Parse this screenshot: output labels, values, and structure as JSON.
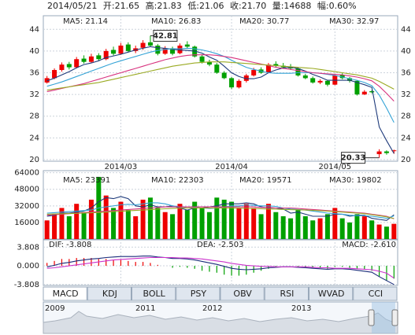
{
  "header": [
    "2014/05/21",
    "开:21.65",
    "高:21.83",
    "低:21.06",
    "收:21.70",
    "量:14688",
    "幅:0.60%"
  ],
  "chart_data": [
    {
      "type": "candlestick",
      "grid": true,
      "up_color": "#ee0000",
      "down_color": "#00a000",
      "categories": [
        null,
        null,
        null,
        null,
        null,
        null,
        null,
        null,
        null,
        null,
        "2014/03",
        null,
        null,
        null,
        null,
        null,
        null,
        null,
        null,
        null,
        null,
        null,
        null,
        null,
        null,
        "2014/04",
        null,
        null,
        null,
        null,
        null,
        null,
        null,
        null,
        null,
        null,
        null,
        null,
        null,
        "2014/05",
        null,
        null,
        null,
        null,
        null,
        null,
        null,
        null
      ],
      "ylim": [
        19.7,
        46.5
      ],
      "yticks": [
        20,
        24,
        28,
        32,
        36,
        40,
        44
      ],
      "ohlc": [
        [
          34.2,
          35.4,
          34.0,
          35.0
        ],
        [
          35.0,
          36.8,
          34.8,
          36.5
        ],
        [
          36.5,
          37.9,
          36.2,
          37.5
        ],
        [
          37.6,
          38.0,
          36.6,
          37.0
        ],
        [
          37.0,
          38.9,
          36.8,
          38.5
        ],
        [
          38.6,
          39.2,
          37.7,
          38.0
        ],
        [
          38.0,
          39.5,
          37.8,
          39.0
        ],
        [
          39.2,
          39.6,
          38.2,
          38.5
        ],
        [
          38.5,
          40.4,
          38.3,
          40.0
        ],
        [
          40.2,
          40.8,
          39.2,
          39.5
        ],
        [
          39.5,
          41.5,
          39.3,
          41.0
        ],
        [
          41.2,
          41.6,
          39.8,
          40.0
        ],
        [
          40.0,
          41.0,
          39.6,
          40.5
        ],
        [
          40.6,
          42.0,
          40.2,
          41.5
        ],
        [
          41.6,
          42.81,
          40.8,
          41.0
        ],
        [
          41.0,
          41.3,
          39.2,
          39.5
        ],
        [
          39.5,
          40.9,
          39.3,
          40.5
        ],
        [
          40.5,
          40.8,
          39.2,
          39.5
        ],
        [
          39.6,
          41.4,
          39.4,
          41.0
        ],
        [
          41.2,
          41.8,
          40.4,
          40.8
        ],
        [
          40.8,
          41.0,
          38.8,
          39.0
        ],
        [
          39.0,
          39.4,
          37.7,
          38.0
        ],
        [
          38.0,
          38.4,
          37.2,
          37.5
        ],
        [
          37.5,
          37.8,
          35.8,
          36.0
        ],
        [
          36.0,
          36.3,
          34.8,
          35.0
        ],
        [
          35.0,
          35.2,
          33.0,
          33.3
        ],
        [
          33.3,
          34.8,
          33.1,
          34.5
        ],
        [
          34.5,
          35.8,
          34.2,
          35.5
        ],
        [
          35.5,
          36.9,
          35.3,
          36.5
        ],
        [
          36.6,
          37.0,
          35.8,
          36.0
        ],
        [
          36.0,
          37.8,
          35.9,
          37.5
        ],
        [
          37.6,
          38.1,
          37.0,
          37.3
        ],
        [
          37.3,
          37.8,
          36.7,
          37.0
        ],
        [
          37.0,
          37.6,
          36.5,
          36.8
        ],
        [
          36.8,
          37.0,
          35.3,
          35.5
        ],
        [
          35.5,
          35.8,
          34.8,
          35.0
        ],
        [
          35.0,
          35.3,
          34.0,
          34.2
        ],
        [
          34.2,
          34.8,
          33.9,
          34.5
        ],
        [
          34.5,
          34.7,
          33.5,
          33.8
        ],
        [
          33.8,
          35.8,
          33.7,
          35.5
        ],
        [
          35.6,
          35.9,
          34.8,
          35.0
        ],
        [
          35.0,
          35.2,
          34.2,
          34.5
        ],
        [
          34.5,
          34.6,
          31.8,
          32.0
        ],
        [
          32.0,
          32.8,
          31.9,
          32.5
        ],
        [
          32.6,
          32.8,
          32.2,
          32.4
        ],
        [
          21.0,
          21.9,
          20.33,
          21.5
        ],
        [
          21.5,
          21.7,
          20.9,
          21.2
        ],
        [
          21.65,
          21.83,
          21.06,
          21.7
        ]
      ],
      "series": [
        {
          "name": "MA5: 21.14",
          "color": "#1e3a7a",
          "values": [
            34.5,
            35.0,
            35.6,
            36.2,
            36.9,
            37.5,
            37.8,
            38.2,
            38.8,
            39.1,
            39.4,
            39.8,
            40.2,
            40.5,
            40.8,
            40.6,
            40.5,
            40.3,
            40.2,
            40.1,
            40.0,
            39.6,
            38.9,
            38.3,
            37.2,
            36.0,
            35.3,
            34.9,
            34.9,
            35.2,
            36.0,
            36.5,
            36.9,
            37.0,
            36.8,
            36.3,
            35.7,
            35.2,
            34.6,
            34.6,
            34.6,
            34.6,
            34.2,
            33.8,
            33.3,
            26,
            23.5,
            21.14
          ]
        },
        {
          "name": "MA10: 26.83",
          "color": "#33a3d6",
          "values": [
            33.5,
            33.9,
            34.3,
            34.8,
            35.3,
            35.8,
            36.3,
            36.8,
            37.3,
            37.8,
            38.2,
            38.6,
            39.0,
            39.4,
            39.8,
            40.1,
            40.3,
            40.4,
            40.4,
            40.5,
            40.4,
            40.2,
            39.9,
            39.5,
            39.0,
            38.3,
            37.6,
            37.0,
            36.6,
            36.3,
            36.0,
            35.9,
            35.9,
            35.9,
            36.0,
            36.0,
            36.0,
            35.9,
            35.7,
            35.5,
            35.2,
            34.9,
            34.6,
            34.2,
            33.6,
            31.9,
            29.5,
            26.83
          ]
        },
        {
          "name": "MA20: 30.77",
          "color": "#d8337f",
          "values": [
            32.5,
            32.8,
            33.1,
            33.4,
            33.7,
            34.0,
            34.4,
            34.8,
            35.2,
            35.6,
            36.0,
            36.4,
            36.8,
            37.2,
            37.6,
            38.0,
            38.4,
            38.7,
            39.0,
            39.2,
            39.3,
            39.3,
            39.3,
            39.2,
            39.0,
            38.8,
            38.5,
            38.2,
            37.9,
            37.6,
            37.3,
            37.0,
            36.8,
            36.6,
            36.4,
            36.2,
            36.0,
            35.9,
            35.8,
            35.7,
            35.6,
            35.4,
            35.2,
            34.9,
            34.5,
            33.5,
            32.2,
            30.77
          ]
        },
        {
          "name": "MA30: 32.97",
          "color": "#9aaa22",
          "values": [
            32.8,
            33.0,
            33.2,
            33.4,
            33.6,
            33.8,
            34.0,
            34.2,
            34.5,
            34.8,
            35.1,
            35.4,
            35.7,
            36.0,
            36.3,
            36.6,
            36.9,
            37.2,
            37.4,
            37.6,
            37.8,
            37.9,
            38.0,
            38.0,
            38.0,
            37.9,
            37.8,
            37.7,
            37.6,
            37.5,
            37.4,
            37.3,
            37.2,
            37.1,
            37.0,
            36.9,
            36.8,
            36.6,
            36.4,
            36.2,
            36.0,
            35.8,
            35.6,
            35.3,
            35.0,
            34.4,
            33.7,
            32.97
          ]
        }
      ],
      "annotations": [
        {
          "value": 42.81,
          "index": 14
        },
        {
          "value": 20.33,
          "index": 45
        }
      ]
    },
    {
      "type": "volume",
      "grid": true,
      "up_color": "#ee0000",
      "down_color": "#00a000",
      "ylim": [
        0,
        66000
      ],
      "yticks": [
        16000,
        32000,
        48000,
        64000
      ],
      "values": [
        18000,
        24000,
        30000,
        22000,
        34000,
        26000,
        38000,
        60000,
        42000,
        30000,
        36000,
        28000,
        22000,
        38000,
        40000,
        30000,
        26000,
        24000,
        34000,
        28000,
        36000,
        30000,
        26000,
        40000,
        38000,
        36000,
        30000,
        34000,
        30000,
        24000,
        34000,
        26000,
        22000,
        20000,
        28000,
        22000,
        18000,
        20000,
        24000,
        30000,
        20000,
        16000,
        24000,
        22000,
        18000,
        14000,
        12000,
        14688
      ],
      "series": [
        {
          "name": "MA5: 23391",
          "color": "#1e3a7a",
          "values": [
            22000,
            23000,
            25000,
            25000,
            26000,
            27000,
            30000,
            36000,
            40000,
            39000,
            41000,
            39000,
            32000,
            31000,
            33000,
            31000,
            31000,
            32000,
            30000,
            28000,
            30000,
            30000,
            31000,
            32000,
            34000,
            34000,
            34000,
            35000,
            34000,
            31000,
            30000,
            30000,
            29000,
            25000,
            26000,
            24000,
            22000,
            22000,
            22000,
            24000,
            24000,
            22000,
            23000,
            23000,
            20000,
            19000,
            18000,
            23391
          ]
        },
        {
          "name": "MA10: 22303",
          "color": "#33a3d6",
          "values": [
            25000,
            25500,
            26000,
            26500,
            27000,
            27500,
            28000,
            30000,
            31000,
            32000,
            33000,
            33500,
            33000,
            34000,
            35000,
            35000,
            34000,
            32000,
            31000,
            30000,
            30500,
            30000,
            29500,
            30000,
            31000,
            32000,
            32000,
            33000,
            32500,
            32000,
            32000,
            31500,
            30000,
            29000,
            28500,
            28000,
            27000,
            26000,
            25000,
            24500,
            24000,
            23000,
            22500,
            22500,
            22000,
            21000,
            20000,
            22303
          ]
        },
        {
          "name": "MA20: 19571",
          "color": "#d8337f",
          "values": [
            23000,
            23500,
            24000,
            24500,
            25000,
            25500,
            26000,
            26500,
            27000,
            27500,
            28000,
            28500,
            29000,
            29500,
            30000,
            30500,
            31000,
            31000,
            31000,
            31000,
            31000,
            31000,
            31000,
            31000,
            31000,
            31000,
            31000,
            31000,
            31000,
            30500,
            30500,
            30000,
            30000,
            30000,
            29500,
            29000,
            28500,
            28000,
            27500,
            27000,
            26500,
            26000,
            25500,
            25000,
            24000,
            23000,
            22000,
            19571
          ]
        },
        {
          "name": "MA30: 19802",
          "color": "#9aaa22",
          "values": [
            24000,
            24200,
            24400,
            24600,
            24800,
            25000,
            25300,
            25600,
            26000,
            26400,
            26800,
            27200,
            27600,
            28000,
            28400,
            28800,
            29200,
            29500,
            29800,
            30000,
            30000,
            30000,
            30000,
            30000,
            30000,
            30000,
            29800,
            29600,
            29400,
            29200,
            29000,
            28800,
            28600,
            28400,
            28200,
            28000,
            27700,
            27400,
            27000,
            26500,
            26000,
            25500,
            25000,
            24500,
            23500,
            22500,
            21500,
            19802
          ]
        }
      ]
    },
    {
      "type": "macd",
      "grid": true,
      "up_color": "#ee0000",
      "down_color": "#00a000",
      "ylim": [
        -4.0,
        5.3
      ],
      "yticks": [
        3.808,
        {
          "value": 0,
          "label": "0.000"
        },
        -3.808
      ],
      "values": [
        0.6,
        1.0,
        1.4,
        1.4,
        1.6,
        1.6,
        1.6,
        1.4,
        1.4,
        1.2,
        1.2,
        1.0,
        0.8,
        0.8,
        0.6,
        0.2,
        0.0,
        -0.4,
        -0.2,
        -0.4,
        -0.6,
        -1.0,
        -1.2,
        -1.4,
        -1.8,
        -2.0,
        -2.0,
        -1.8,
        -1.4,
        -1.0,
        -0.6,
        -0.2,
        0.0,
        0.0,
        -0.2,
        -0.4,
        -0.4,
        -0.4,
        -0.6,
        -0.2,
        -0.2,
        -0.4,
        -0.6,
        -0.8,
        -1.0,
        -2.2,
        -3.0,
        -2.61
      ],
      "values_name": "MACD: -2.610",
      "series": [
        {
          "name": "DIF: -3.808",
          "color": "#1a2b7a",
          "values": [
            -0.2,
            0.1,
            0.5,
            0.7,
            1.0,
            1.2,
            1.4,
            1.5,
            1.7,
            1.8,
            1.9,
            1.9,
            1.9,
            2.0,
            2.0,
            1.8,
            1.7,
            1.5,
            1.5,
            1.4,
            1.2,
            0.9,
            0.6,
            0.3,
            -0.1,
            -0.5,
            -0.7,
            -0.8,
            -0.7,
            -0.6,
            -0.4,
            -0.3,
            -0.2,
            -0.2,
            -0.3,
            -0.4,
            -0.5,
            -0.6,
            -0.7,
            -0.6,
            -0.6,
            -0.7,
            -0.9,
            -1.1,
            -1.3,
            -2.2,
            -3.0,
            -3.808
          ]
        },
        {
          "name": "DEA: -2.503",
          "color": "#cc33cc",
          "values": [
            -0.5,
            -0.4,
            -0.2,
            0.0,
            0.2,
            0.4,
            0.6,
            0.8,
            1.0,
            1.2,
            1.3,
            1.4,
            1.5,
            1.6,
            1.7,
            1.7,
            1.7,
            1.7,
            1.6,
            1.6,
            1.5,
            1.4,
            1.2,
            1.0,
            0.8,
            0.5,
            0.3,
            0.1,
            0.0,
            -0.1,
            -0.1,
            -0.2,
            -0.2,
            -0.2,
            -0.2,
            -0.2,
            -0.3,
            -0.4,
            -0.4,
            -0.5,
            -0.5,
            -0.5,
            -0.6,
            -0.7,
            -0.8,
            -1.1,
            -1.5,
            -2.503
          ]
        }
      ]
    }
  ],
  "tabs": {
    "items": [
      "MACD",
      "KDJ",
      "BOLL",
      "PSY",
      "OBV",
      "RSI",
      "WVAD",
      "CCI"
    ],
    "selected": 0
  },
  "navigator": {
    "years": [
      "2009",
      "2011",
      "2012",
      "2013"
    ]
  }
}
